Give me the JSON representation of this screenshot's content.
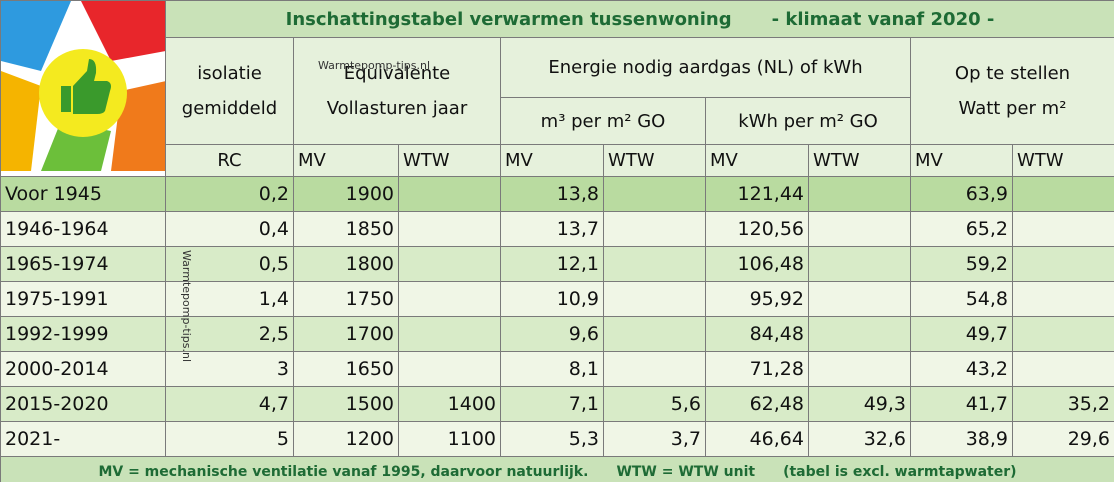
{
  "title": "Inschattingstabel verwarmen tussenwoning",
  "subtitle": "- klimaat vanaf 2020 -",
  "headers": {
    "insulation": [
      "isolatie",
      "gemiddeld"
    ],
    "equivalent": [
      "Equivalente",
      "Vollasturen jaar"
    ],
    "energy": "Energie nodig aardgas (NL) of kWh",
    "gas": "m³ per m² GO",
    "kwh": "kWh per m² GO",
    "power": [
      "Op te stellen",
      "Watt per m²"
    ],
    "columns": [
      "RC",
      "MV",
      "WTW",
      "MV",
      "WTW",
      "MV",
      "WTW",
      "MV",
      "WTW"
    ]
  },
  "watermarks": [
    "Warmtepomp-tips.nl",
    "Warmtepomp-tips.nl"
  ],
  "table": {
    "rows": [
      [
        "Voor 1945",
        "0,2",
        "1900",
        null,
        "13,8",
        null,
        "121,44",
        null,
        "63,9",
        null
      ],
      [
        "1946-1964",
        "0,4",
        "1850",
        null,
        "13,7",
        null,
        "120,56",
        null,
        "65,2",
        null
      ],
      [
        "1965-1974",
        "0,5",
        "1800",
        null,
        "12,1",
        null,
        "106,48",
        null,
        "59,2",
        null
      ],
      [
        "1975-1991",
        "1,4",
        "1750",
        null,
        "10,9",
        null,
        "95,92",
        null,
        "54,8",
        null
      ],
      [
        "1992-1999",
        "2,5",
        "1700",
        null,
        "9,6",
        null,
        "84,48",
        null,
        "49,7",
        null
      ],
      [
        "2000-2014",
        "3",
        "1650",
        null,
        "8,1",
        null,
        "71,28",
        null,
        "43,2",
        null
      ],
      [
        "2015-2020",
        "4,7",
        "1500",
        "1400",
        "7,1",
        "5,6",
        "62,48",
        "49,3",
        "41,7",
        "35,2"
      ],
      [
        "2021-",
        "5",
        "1200",
        "1100",
        "5,3",
        "3,7",
        "46,64",
        "32,6",
        "38,9",
        "29,6"
      ]
    ]
  },
  "footer": [
    "MV = mechanische ventilatie vanaf 1995, daarvoor natuurlijk.",
    "WTW = WTW unit",
    "(tabel is excl. warmtapwater)"
  ]
}
